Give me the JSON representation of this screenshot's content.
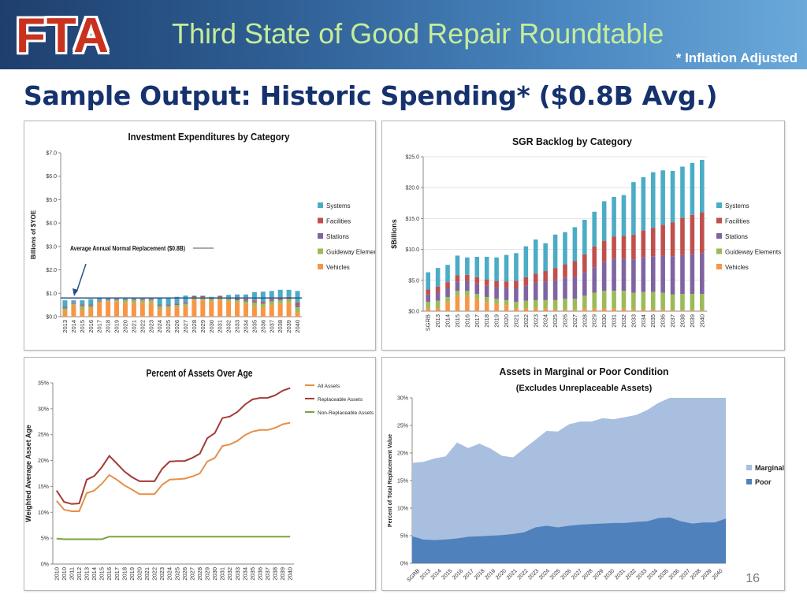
{
  "header": {
    "logo_text": "FTA",
    "title": "Third State of Good Repair Roundtable",
    "note": "* Inflation Adjusted"
  },
  "slide": {
    "title": "Sample Output: Historic Spending* ($0.8B Avg.)",
    "page_number": "16"
  },
  "colors": {
    "systems": "#4bacc6",
    "facilities": "#c0504d",
    "stations": "#8064a2",
    "guideway": "#9bbb59",
    "vehicles": "#f79646",
    "all_assets": "#e4904a",
    "replaceable": "#a23b37",
    "non_replaceable": "#7aa341",
    "marginal": "#a9bfe0",
    "poor": "#4f81bd"
  },
  "chart_data": [
    {
      "type": "bar",
      "stacked": true,
      "title": "Investment Expenditures by Category",
      "ylabel": "Billions of $YOE",
      "xlabel": "",
      "ylim": [
        0,
        7
      ],
      "yticks": [
        "$0.0",
        "$1.0",
        "$2.0",
        "$3.0",
        "$4.0",
        "$5.0",
        "$6.0",
        "$7.0"
      ],
      "categories": [
        "2013",
        "2014",
        "2015",
        "2016",
        "2017",
        "2018",
        "2019",
        "2020",
        "2021",
        "2022",
        "2023",
        "2024",
        "2025",
        "2026",
        "2027",
        "2028",
        "2029",
        "2030",
        "2031",
        "2032",
        "2033",
        "2034",
        "2035",
        "2036",
        "2037",
        "2038",
        "2039",
        "2040"
      ],
      "series": [
        {
          "name": "Vehicles",
          "values": [
            0.25,
            0.5,
            0.3,
            0.35,
            0.6,
            0.65,
            0.65,
            0.6,
            0.6,
            0.6,
            0.6,
            0.3,
            0.35,
            0.4,
            0.45,
            0.7,
            0.7,
            0.65,
            0.7,
            0.65,
            0.6,
            0.55,
            0.45,
            0.4,
            0.5,
            0.55,
            0.6,
            0.2
          ]
        },
        {
          "name": "Guideway Elements",
          "values": [
            0.1,
            0.05,
            0.15,
            0.1,
            0.05,
            0.05,
            0.05,
            0.1,
            0.1,
            0.1,
            0.1,
            0.15,
            0.1,
            0.1,
            0.1,
            0.1,
            0.1,
            0.1,
            0.1,
            0.1,
            0.1,
            0.1,
            0.15,
            0.15,
            0.15,
            0.15,
            0.15,
            0.2
          ]
        },
        {
          "name": "Stations",
          "values": [
            0.05,
            0.03,
            0.05,
            0.05,
            0.03,
            0.03,
            0.03,
            0.03,
            0.03,
            0.03,
            0.03,
            0.05,
            0.05,
            0.05,
            0.05,
            0.03,
            0.03,
            0.03,
            0.03,
            0.03,
            0.05,
            0.05,
            0.05,
            0.05,
            0.05,
            0.05,
            0.05,
            0.1
          ]
        },
        {
          "name": "Facilities",
          "values": [
            0.02,
            0.02,
            0.02,
            0.02,
            0.02,
            0.02,
            0.02,
            0.02,
            0.02,
            0.02,
            0.02,
            0.02,
            0.02,
            0.02,
            0.02,
            0.05,
            0.05,
            0.05,
            0.05,
            0.05,
            0.05,
            0.05,
            0.05,
            0.05,
            0.05,
            0.05,
            0.05,
            0.1
          ]
        },
        {
          "name": "Systems",
          "values": [
            0.28,
            0.1,
            0.18,
            0.23,
            0.1,
            0.05,
            0.05,
            0.05,
            0.05,
            0.05,
            0.05,
            0.28,
            0.28,
            0.28,
            0.28,
            0.02,
            0.02,
            0.02,
            0.02,
            0.1,
            0.15,
            0.2,
            0.35,
            0.42,
            0.35,
            0.35,
            0.3,
            0.5
          ]
        }
      ],
      "annotation": "Average Annual Normal Replacement ($0.8B)",
      "reference_line": 0.8,
      "legend": "right"
    },
    {
      "type": "bar",
      "stacked": true,
      "title": "SGR Backlog by Category",
      "ylabel": "$Billions",
      "xlabel": "",
      "ylim": [
        0,
        25
      ],
      "yticks": [
        "$0.0",
        "$5.0",
        "$10.0",
        "$15.0",
        "$20.0",
        "$25.0"
      ],
      "categories": [
        "SGRB",
        "2013",
        "2014",
        "2015",
        "2016",
        "2017",
        "2018",
        "2019",
        "2020",
        "2021",
        "2022",
        "2023",
        "2024",
        "2025",
        "2026",
        "2027",
        "2028",
        "2029",
        "2030",
        "2031",
        "2032",
        "2033",
        "2034",
        "2035",
        "2036",
        "2037",
        "2038",
        "2039",
        "2040"
      ],
      "series": [
        {
          "name": "Vehicles",
          "values": [
            0.5,
            0.5,
            1.5,
            2.5,
            2.5,
            2.0,
            1.5,
            1.2,
            1.0,
            0.5,
            0.5,
            0.5,
            0.5,
            0.3,
            0.3,
            0.3,
            0.5,
            0.5,
            0.5,
            0.5,
            0.5,
            0.3,
            0.3,
            0.3,
            0.3,
            0.2,
            0.2,
            0.2,
            0.2
          ]
        },
        {
          "name": "Guideway Elements",
          "values": [
            1.0,
            1.2,
            0.8,
            0.8,
            0.8,
            0.8,
            0.8,
            0.8,
            0.8,
            1.0,
            1.2,
            1.3,
            1.3,
            1.5,
            1.7,
            1.7,
            2.0,
            2.5,
            2.8,
            2.8,
            2.8,
            2.7,
            2.8,
            2.8,
            2.7,
            2.5,
            2.6,
            2.6,
            2.6
          ]
        },
        {
          "name": "Stations",
          "values": [
            1.2,
            1.3,
            1.4,
            1.5,
            1.6,
            1.7,
            1.8,
            1.9,
            2.0,
            2.2,
            2.4,
            2.8,
            3.0,
            3.2,
            3.4,
            3.6,
            3.8,
            4.1,
            4.7,
            5.2,
            5.2,
            5.4,
            5.6,
            5.8,
            6.0,
            6.2,
            6.3,
            6.5,
            6.6
          ]
        },
        {
          "name": "Facilities",
          "values": [
            0.8,
            1.0,
            1.0,
            1.0,
            1.0,
            1.0,
            1.0,
            1.0,
            1.0,
            1.2,
            1.4,
            1.5,
            1.7,
            2.0,
            2.2,
            2.5,
            2.9,
            3.4,
            3.4,
            3.6,
            3.7,
            4.0,
            4.4,
            4.6,
            5.0,
            5.5,
            6.0,
            6.3,
            6.6
          ]
        },
        {
          "name": "Systems",
          "values": [
            2.8,
            3.0,
            2.8,
            3.2,
            2.8,
            3.3,
            3.7,
            3.8,
            4.3,
            4.5,
            5.0,
            5.5,
            4.5,
            5.4,
            5.2,
            5.5,
            5.6,
            5.6,
            6.4,
            6.4,
            6.6,
            8.5,
            8.6,
            9.0,
            8.8,
            8.3,
            8.3,
            8.4,
            8.5
          ]
        }
      ],
      "legend": "right"
    },
    {
      "type": "line",
      "title": "Percent of Assets Over Age",
      "ylabel": "Weighted Average Asset Age",
      "xlabel": "",
      "ylim": [
        0,
        35
      ],
      "yticks": [
        "0%",
        "5%",
        "10%",
        "15%",
        "20%",
        "25%",
        "30%",
        "35%"
      ],
      "categories": [
        "2010",
        "2010",
        "2011",
        "2012",
        "2013",
        "2014",
        "2015",
        "2016",
        "2017",
        "2018",
        "2019",
        "2020",
        "2021",
        "2022",
        "2023",
        "2024",
        "2025",
        "2026",
        "2027",
        "2028",
        "2029",
        "2030",
        "2031",
        "2032",
        "2033",
        "2034",
        "2035",
        "2036",
        "2037",
        "2038",
        "2039",
        "2040"
      ],
      "series": [
        {
          "name": "All Assets",
          "values": [
            12.2,
            10.5,
            10.2,
            10.2,
            13.7,
            14.2,
            15.5,
            17.2,
            16.3,
            15.2,
            14.4,
            13.5,
            13.5,
            13.5,
            15.3,
            16.3,
            16.4,
            16.5,
            16.9,
            17.5,
            19.8,
            20.5,
            22.8,
            23.1,
            23.8,
            24.9,
            25.6,
            25.9,
            25.9,
            26.3,
            27.0,
            27.3
          ]
        },
        {
          "name": "Replaceable Assets",
          "values": [
            14.2,
            12.0,
            11.6,
            11.7,
            16.3,
            17.0,
            18.7,
            20.9,
            19.4,
            17.9,
            16.8,
            16.0,
            16.0,
            16.0,
            18.4,
            19.8,
            19.9,
            19.9,
            20.5,
            21.3,
            24.3,
            25.3,
            28.2,
            28.5,
            29.4,
            30.8,
            31.8,
            32.1,
            32.1,
            32.6,
            33.5,
            34.0
          ]
        },
        {
          "name": "Non-Replaceable Assets",
          "values": [
            4.9,
            4.8,
            4.8,
            4.8,
            4.8,
            4.8,
            4.8,
            5.3,
            5.3,
            5.3,
            5.3,
            5.3,
            5.3,
            5.3,
            5.3,
            5.3,
            5.3,
            5.3,
            5.3,
            5.3,
            5.3,
            5.3,
            5.3,
            5.3,
            5.3,
            5.3,
            5.3,
            5.3,
            5.3,
            5.3,
            5.3,
            5.3
          ]
        }
      ],
      "legend": "top-right"
    },
    {
      "type": "area",
      "stacked": true,
      "title": "Assets in Marginal or Poor Condition",
      "subtitle": "(Excludes Unreplaceable Assets)",
      "ylabel": "Percent of Total Replacement Value",
      "xlabel": "",
      "ylim": [
        0,
        30
      ],
      "yticks": [
        "0%",
        "5%",
        "10%",
        "15%",
        "20%",
        "25%",
        "30%"
      ],
      "categories": [
        "SGRB",
        "2013",
        "2014",
        "2015",
        "2016",
        "2017",
        "2018",
        "2019",
        "2020",
        "2021",
        "2022",
        "2023",
        "2024",
        "2025",
        "2026",
        "2027",
        "2028",
        "2029",
        "2030",
        "2031",
        "2032",
        "2033",
        "2034",
        "2035",
        "2036",
        "2037",
        "2038",
        "2039",
        "2040"
      ],
      "series": [
        {
          "name": "Poor",
          "values": [
            4.9,
            4.3,
            4.2,
            4.3,
            4.5,
            4.8,
            4.9,
            5.0,
            5.1,
            5.3,
            5.6,
            6.5,
            6.8,
            6.5,
            6.8,
            7.0,
            7.1,
            7.2,
            7.3,
            7.3,
            7.5,
            7.6,
            8.2,
            8.3,
            7.6,
            7.2,
            7.4,
            7.4,
            8.1
          ]
        },
        {
          "name": "Marginal",
          "values": [
            13.3,
            14.1,
            14.8,
            15.1,
            17.4,
            16.1,
            16.8,
            15.8,
            14.4,
            13.9,
            15.2,
            15.9,
            17.2,
            17.4,
            18.4,
            18.7,
            18.6,
            19.1,
            18.8,
            19.2,
            19.4,
            20.2,
            20.9,
            21.7,
            22.4,
            22.8,
            22.6,
            22.6,
            21.9
          ]
        }
      ],
      "legend": "right"
    }
  ]
}
